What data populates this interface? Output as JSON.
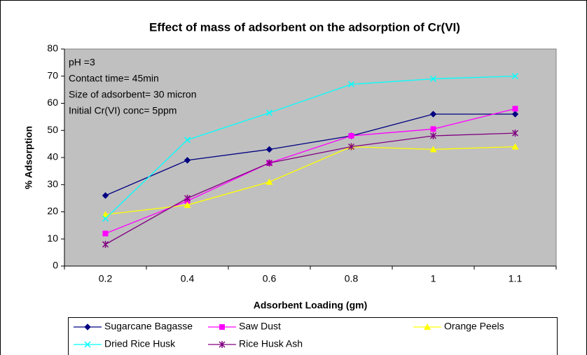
{
  "chart_data": {
    "type": "line",
    "title": "Effect of mass of adsorbent on the adsorption of Cr(VI)",
    "x_label": "Adsorbent Loading (gm)",
    "y_label": "% Adsorption",
    "annotations": [
      "pH =3",
      "Contact time= 45min",
      "Size of adsorbent= 30 micron",
      "Initial Cr(VI) conc= 5ppm"
    ],
    "categories": [
      "0.2",
      "0.4",
      "0.6",
      "0.8",
      "1",
      "1.1"
    ],
    "ylim": [
      0,
      80
    ],
    "yticks": [
      0,
      10,
      20,
      30,
      40,
      50,
      60,
      70,
      80
    ],
    "grid": false,
    "plot_background": "#c0c0c0",
    "series": [
      {
        "name": "Sugarcane Bagasse",
        "color": "#000080",
        "marker": "diamond",
        "values": [
          26,
          39,
          43,
          48,
          56,
          56
        ]
      },
      {
        "name": "Saw Dust",
        "color": "#ff00ff",
        "marker": "square",
        "values": [
          12,
          24,
          38,
          48,
          50.5,
          58
        ]
      },
      {
        "name": "Orange Peels",
        "color": "#ffff00",
        "marker": "triangle",
        "values": [
          19,
          22.5,
          31,
          44,
          43,
          44
        ]
      },
      {
        "name": "Dried Rice Husk",
        "color": "#00ffff",
        "marker": "x",
        "values": [
          17.5,
          46.5,
          56.5,
          67,
          69,
          70
        ]
      },
      {
        "name": "Rice Husk Ash",
        "color": "#800080",
        "marker": "star",
        "values": [
          8,
          25,
          38,
          44,
          48,
          49
        ]
      }
    ]
  }
}
